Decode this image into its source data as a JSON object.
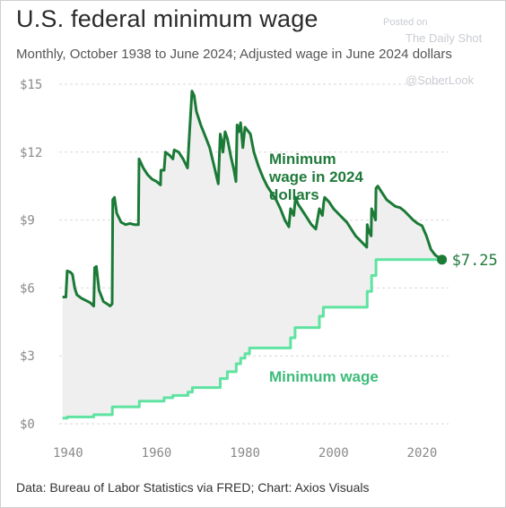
{
  "header": {
    "title": "U.S. federal minimum wage",
    "subtitle": "Monthly, October 1938 to June 2024; Adjusted wage in June 2024 dollars"
  },
  "watermark": {
    "line1": "Posted on",
    "line2": "The Daily Shot",
    "line3": "@SoberLook"
  },
  "footer": {
    "source": "Data: Bureau of Labor Statistics via FRED; Chart: Axios Visuals"
  },
  "colors": {
    "adjusted": "#1a7a36",
    "nominal": "#5fe3a1",
    "fill": "#efefef",
    "grid": "#d9d9d9"
  },
  "chart_data": {
    "type": "line",
    "title": "U.S. federal minimum wage",
    "xlim": [
      1938,
      2026
    ],
    "ylim": [
      0,
      15
    ],
    "x_ticks": [
      "1940",
      "1960",
      "1980",
      "2000",
      "2020"
    ],
    "y_ticks": [
      "$0",
      "$3",
      "$6",
      "$9",
      "$12",
      "$15"
    ],
    "grid": "horizontal dashed",
    "annotations": {
      "adjusted": [
        "Minimum",
        "wage in 2024",
        "dollars"
      ],
      "nominal": "Minimum wage",
      "end_value": "$7.25"
    },
    "series": [
      {
        "name": "Minimum wage in 2024 dollars",
        "x": [
          1938.75,
          1939.5,
          1939.8,
          1940.5,
          1941.0,
          1941.5,
          1942.0,
          1943.0,
          1944.0,
          1945.0,
          1945.8,
          1946.0,
          1946.4,
          1947.0,
          1948.0,
          1948.8,
          1949.5,
          1949.96,
          1950.1,
          1950.5,
          1951.0,
          1952.0,
          1953.0,
          1954.0,
          1955.0,
          1955.9,
          1956.05,
          1957.0,
          1958.0,
          1959.0,
          1960.0,
          1960.9,
          1961.0,
          1961.7,
          1962.0,
          1963.0,
          1963.7,
          1964.0,
          1965.0,
          1966.0,
          1967.0,
          1967.4,
          1968.0,
          1968.5,
          1969.0,
          1970.0,
          1971.0,
          1972.0,
          1973.0,
          1973.95,
          1974.4,
          1974.7,
          1975.0,
          1975.5,
          1976.0,
          1976.3,
          1976.8,
          1977.5,
          1977.95,
          1978.2,
          1978.6,
          1979.0,
          1979.5,
          1980.0,
          1980.8,
          1981.2,
          1982.0,
          1983.0,
          1984.0,
          1985.0,
          1986.0,
          1987.0,
          1988.0,
          1989.0,
          1989.9,
          1990.3,
          1991.0,
          1991.4,
          1992.0,
          1993.0,
          1994.0,
          1995.0,
          1996.0,
          1996.8,
          1997.5,
          1997.8,
          1998.0,
          1999.0,
          2000.0,
          2001.0,
          2002.0,
          2003.0,
          2004.0,
          2005.0,
          2006.0,
          2007.5,
          2007.6,
          2008.0,
          2008.5,
          2008.6,
          2009.0,
          2009.5,
          2009.6,
          2010.0,
          2011.0,
          2012.0,
          2013.0,
          2014.0,
          2015.0,
          2016.0,
          2017.0,
          2018.0,
          2019.0,
          2020.0,
          2021.0,
          2022.0,
          2023.0,
          2024.5
        ],
        "y": [
          5.6,
          5.6,
          6.75,
          6.7,
          6.6,
          6.0,
          5.7,
          5.55,
          5.45,
          5.35,
          5.2,
          6.9,
          6.95,
          5.9,
          5.4,
          5.3,
          5.2,
          5.3,
          9.9,
          10.0,
          9.3,
          8.9,
          8.8,
          8.85,
          8.8,
          8.8,
          11.7,
          11.3,
          11.0,
          10.8,
          10.7,
          10.55,
          11.2,
          11.2,
          12.0,
          11.85,
          11.7,
          12.1,
          12.0,
          11.7,
          11.3,
          12.7,
          14.7,
          14.5,
          13.8,
          13.2,
          12.7,
          12.2,
          11.4,
          10.6,
          12.8,
          12.5,
          12.0,
          12.9,
          12.6,
          12.3,
          11.8,
          11.2,
          10.7,
          13.2,
          12.9,
          13.3,
          12.2,
          13.1,
          12.9,
          12.8,
          12.0,
          11.4,
          10.9,
          10.5,
          10.2,
          9.9,
          9.5,
          9.0,
          8.7,
          9.5,
          9.2,
          10.0,
          9.7,
          9.4,
          9.1,
          8.8,
          8.6,
          9.5,
          9.2,
          9.8,
          10.0,
          9.8,
          9.5,
          9.3,
          9.1,
          8.9,
          8.6,
          8.3,
          8.1,
          7.8,
          8.8,
          8.5,
          8.3,
          9.5,
          9.3,
          9.0,
          10.4,
          10.5,
          10.2,
          9.9,
          9.75,
          9.6,
          9.55,
          9.4,
          9.2,
          9.0,
          8.85,
          8.75,
          8.3,
          7.7,
          7.45,
          7.25
        ]
      },
      {
        "name": "Minimum wage",
        "x": [
          1938.75,
          1939.8,
          1939.8,
          1945.8,
          1945.8,
          1950.0,
          1950.0,
          1956.1,
          1956.1,
          1961.7,
          1961.7,
          1963.7,
          1963.7,
          1967.1,
          1967.1,
          1968.1,
          1968.1,
          1974.4,
          1974.4,
          1976.0,
          1976.0,
          1978.0,
          1978.0,
          1979.0,
          1979.0,
          1980.0,
          1980.0,
          1981.0,
          1981.0,
          1990.3,
          1990.3,
          1991.3,
          1991.3,
          1996.8,
          1996.8,
          1997.7,
          1997.7,
          2007.6,
          2007.6,
          2008.6,
          2008.6,
          2009.6,
          2009.6,
          2024.5
        ],
        "y": [
          0.25,
          0.25,
          0.3,
          0.3,
          0.4,
          0.4,
          0.75,
          0.75,
          1.0,
          1.0,
          1.15,
          1.15,
          1.25,
          1.25,
          1.4,
          1.4,
          1.6,
          1.6,
          2.0,
          2.0,
          2.3,
          2.3,
          2.65,
          2.65,
          2.9,
          2.9,
          3.1,
          3.1,
          3.35,
          3.35,
          3.8,
          3.8,
          4.25,
          4.25,
          4.75,
          4.75,
          5.15,
          5.15,
          5.85,
          5.85,
          6.55,
          6.55,
          7.25,
          7.25
        ]
      }
    ]
  }
}
